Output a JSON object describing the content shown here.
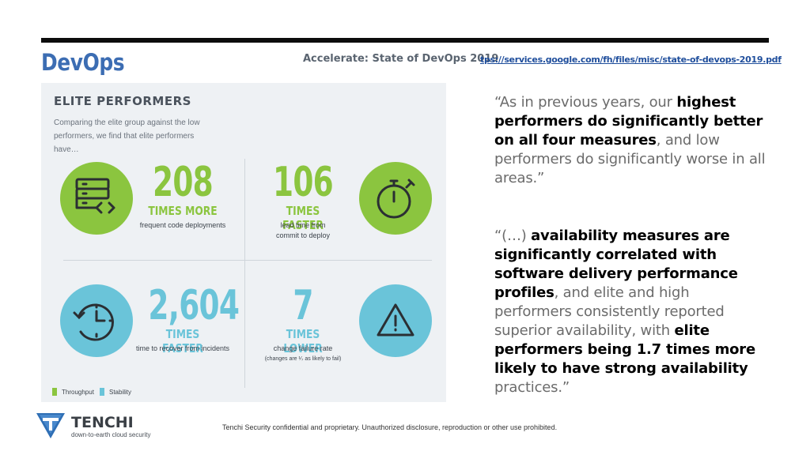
{
  "header": {
    "title": "DevOps",
    "source": "Accelerate: State of DevOps 2019",
    "link": "tps://services.google.com/fh/files/misc/state-of-devops-2019.pdf"
  },
  "infographic": {
    "title": "ELITE PERFORMERS",
    "subtitle": "Comparing the elite group against the low performers, we find that elite performers have…",
    "stats": [
      {
        "value": "208",
        "kind": "TIMES MORE",
        "desc_1": "frequent code deployments",
        "desc_2": "",
        "icon": "server-code-icon",
        "category": "Throughput"
      },
      {
        "value": "106",
        "kind": "TIMES FASTER",
        "desc_1": "lead time from",
        "desc_2": "commit to deploy",
        "icon": "stopwatch-icon",
        "category": "Throughput"
      },
      {
        "value": "2,604",
        "kind": "TIMES FASTER",
        "desc_1": "time to recover from incidents",
        "desc_2": "",
        "icon": "clock-recovery-icon",
        "category": "Stability"
      },
      {
        "value": "7",
        "kind": "TIMES LOWER",
        "desc_1": "change failure rate",
        "desc_2": "",
        "note": "(changes are ¹⁄₇ as likely to fail)",
        "icon": "warning-icon",
        "category": "Stability"
      }
    ],
    "legend": [
      {
        "label": "Throughput",
        "color": "#8bc53f"
      },
      {
        "label": "Stability",
        "color": "#6ac4d9"
      }
    ]
  },
  "quotes": {
    "q1": {
      "p1": "“As in previous years, our ",
      "b1": "highest performers do significantly better on all four measures",
      "p2": ", and low performers do significantly worse in all areas.”"
    },
    "q2": {
      "p1": "“(…) ",
      "b1": "availability measures are significantly correlated with software delivery performance profiles",
      "p2": ", and elite and high performers consistently reported superior availability, with ",
      "b2": "elite performers being 1.7 times more likely to have strong availability",
      "p3": " practices.”"
    }
  },
  "brand": {
    "name": "TENCHI",
    "tagline": "down-to-earth cloud security",
    "footer": "Tenchi Security confidential and proprietary. Unauthorized disclosure, reproduction or other use prohibited."
  },
  "colors": {
    "accent_blue": "#3c6db3",
    "throughput_green": "#8bc53f",
    "stability_blue": "#6ac4d9"
  }
}
